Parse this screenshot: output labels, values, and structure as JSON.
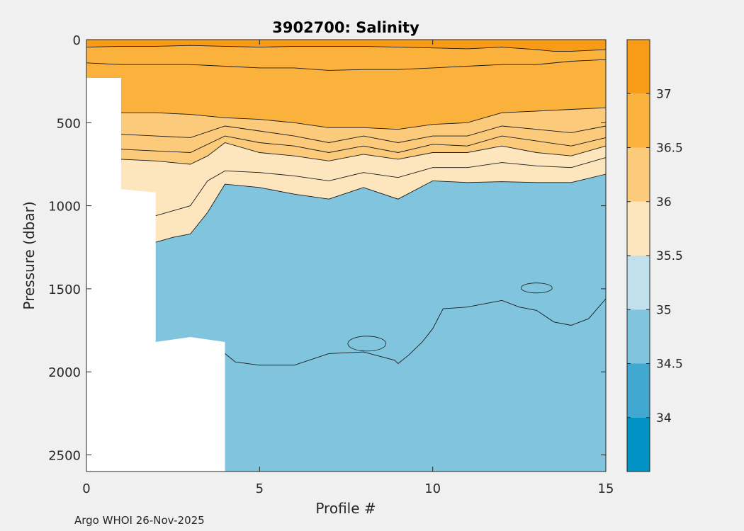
{
  "chart_data": {
    "type": "filled-contour",
    "title": "3902700:  Salinity",
    "xlabel": "Profile #",
    "ylabel": "Pressure (dbar)",
    "xlim": [
      0,
      15
    ],
    "ylim": [
      0,
      2600
    ],
    "y_reversed": true,
    "xticks": [
      0,
      5,
      10,
      15
    ],
    "yticks": [
      0,
      500,
      1000,
      1500,
      2000,
      2500
    ],
    "colorbar": {
      "ticks": [
        34,
        34.5,
        35,
        35.5,
        36,
        36.5,
        37
      ],
      "bands": [
        {
          "min": 33.5,
          "max": 34.0,
          "color": "#0093c4"
        },
        {
          "min": 34.0,
          "max": 34.5,
          "color": "#41a8cf"
        },
        {
          "min": 34.5,
          "max": 35.0,
          "color": "#80c4de"
        },
        {
          "min": 35.0,
          "max": 35.5,
          "color": "#c0e0ec"
        },
        {
          "min": 35.5,
          "max": 36.0,
          "color": "#fde6bd"
        },
        {
          "min": 36.0,
          "max": 36.5,
          "color": "#fbca7b"
        },
        {
          "min": 36.5,
          "max": 37.0,
          "color": "#fab23c"
        },
        {
          "min": 37.0,
          "max": 37.5,
          "color": "#f89c17"
        }
      ]
    },
    "max_depth_by_profile": {
      "x": [
        0,
        1,
        1,
        2,
        2,
        3,
        4,
        4,
        15
      ],
      "depth": [
        230,
        230,
        900,
        920,
        1820,
        1790,
        1820,
        2600,
        2600
      ]
    },
    "isohalines": [
      {
        "level": 34.9,
        "x": [
          4,
          4.3,
          5,
          6,
          7,
          8,
          8.9,
          9,
          9.3,
          9.7,
          10,
          10.3,
          11,
          12,
          12.5,
          13,
          13.5,
          14,
          14.5,
          15
        ],
        "depth": [
          1890,
          1940,
          1960,
          1960,
          1890,
          1880,
          1930,
          1950,
          1900,
          1820,
          1740,
          1620,
          1610,
          1570,
          1610,
          1630,
          1700,
          1720,
          1680,
          1560
        ]
      },
      {
        "level": 35.5,
        "x": [
          2,
          2.5,
          3,
          3.5,
          4,
          5,
          6,
          7,
          8,
          9,
          10,
          11,
          12,
          13,
          14,
          15
        ],
        "depth": [
          1220,
          1190,
          1170,
          1040,
          870,
          890,
          930,
          960,
          890,
          960,
          850,
          860,
          855,
          860,
          860,
          810
        ]
      },
      {
        "level": 35.75,
        "x": [
          2,
          2.5,
          3,
          3.5,
          4,
          5,
          6,
          7,
          8,
          9,
          10,
          11,
          12,
          13,
          14,
          15
        ],
        "depth": [
          1060,
          1030,
          1000,
          850,
          790,
          800,
          820,
          850,
          800,
          830,
          770,
          770,
          740,
          760,
          770,
          710
        ]
      },
      {
        "level": 36.0,
        "x": [
          1,
          2,
          3,
          3.5,
          4,
          5,
          6,
          7,
          8,
          9,
          10,
          11,
          12,
          13,
          14,
          15
        ],
        "depth": [
          720,
          730,
          750,
          700,
          620,
          680,
          700,
          730,
          690,
          720,
          680,
          680,
          640,
          680,
          700,
          640
        ]
      },
      {
        "level": 36.2,
        "x": [
          1,
          2,
          3,
          4,
          5,
          6,
          7,
          8,
          9,
          10,
          11,
          12,
          13,
          14,
          15
        ],
        "depth": [
          660,
          670,
          680,
          580,
          620,
          640,
          680,
          640,
          680,
          630,
          640,
          580,
          610,
          640,
          590
        ]
      },
      {
        "level": 36.4,
        "x": [
          1,
          2,
          3,
          4,
          5,
          6,
          7,
          8,
          9,
          10,
          11,
          12,
          13,
          14,
          15
        ],
        "depth": [
          570,
          580,
          590,
          520,
          550,
          580,
          620,
          580,
          620,
          580,
          580,
          520,
          540,
          560,
          520
        ]
      },
      {
        "level": 36.6,
        "x": [
          1,
          2,
          3,
          4,
          5,
          6,
          7,
          8,
          9,
          10,
          11,
          12,
          13,
          14,
          15
        ],
        "depth": [
          440,
          440,
          450,
          470,
          480,
          500,
          530,
          530,
          540,
          510,
          500,
          440,
          430,
          420,
          410
        ]
      },
      {
        "level": 36.8,
        "x": [
          0,
          1,
          2,
          3,
          4,
          5,
          6,
          7,
          8,
          9,
          10,
          11,
          12,
          13,
          14,
          14.5,
          15
        ],
        "depth": [
          140,
          150,
          150,
          150,
          160,
          170,
          170,
          185,
          180,
          180,
          170,
          160,
          150,
          150,
          130,
          125,
          120
        ]
      },
      {
        "level": 37.0,
        "x": [
          0,
          1,
          2,
          3,
          4,
          5,
          6,
          7,
          8,
          9,
          10,
          11,
          12,
          13,
          13.5,
          14,
          15
        ],
        "depth": [
          45,
          40,
          40,
          35,
          40,
          45,
          40,
          40,
          40,
          45,
          50,
          55,
          45,
          60,
          70,
          70,
          60
        ]
      }
    ],
    "annotations": "Argo WHOI 26-Nov-2025"
  }
}
